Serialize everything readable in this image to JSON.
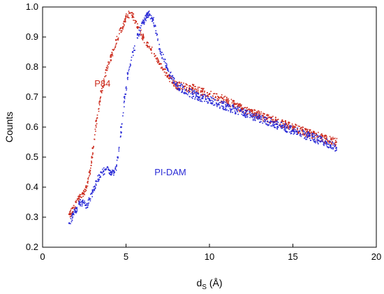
{
  "chart_data": {
    "type": "scatter",
    "xlabel": "d",
    "xlabel_sub": "S",
    "xlabel_unit": " (Å)",
    "ylabel": "Counts",
    "xlim": [
      0,
      20
    ],
    "ylim": [
      0.2,
      1.0
    ],
    "xticks": [
      "0",
      "5",
      "10",
      "15",
      "20"
    ],
    "yticks": [
      "0.2",
      "0.3",
      "0.4",
      "0.5",
      "0.6",
      "0.7",
      "0.8",
      "0.9",
      "1.0"
    ],
    "grid": false,
    "series": [
      {
        "name": "P84",
        "color": "#cc2b1d",
        "points": [
          [
            1.6,
            0.31
          ],
          [
            1.8,
            0.33
          ],
          [
            2.0,
            0.35
          ],
          [
            2.2,
            0.37
          ],
          [
            2.4,
            0.38
          ],
          [
            2.6,
            0.4
          ],
          [
            2.8,
            0.45
          ],
          [
            3.0,
            0.53
          ],
          [
            3.2,
            0.62
          ],
          [
            3.5,
            0.72
          ],
          [
            3.8,
            0.79
          ],
          [
            4.1,
            0.84
          ],
          [
            4.4,
            0.89
          ],
          [
            4.7,
            0.93
          ],
          [
            5.0,
            0.97
          ],
          [
            5.2,
            0.98
          ],
          [
            5.4,
            0.97
          ],
          [
            5.7,
            0.93
          ],
          [
            6.0,
            0.9
          ],
          [
            6.5,
            0.86
          ],
          [
            7.0,
            0.81
          ],
          [
            7.5,
            0.77
          ],
          [
            8.0,
            0.74
          ],
          [
            8.5,
            0.735
          ],
          [
            9.0,
            0.73
          ],
          [
            9.5,
            0.72
          ],
          [
            10.0,
            0.71
          ],
          [
            11.0,
            0.69
          ],
          [
            12.0,
            0.66
          ],
          [
            13.0,
            0.64
          ],
          [
            14.0,
            0.62
          ],
          [
            15.0,
            0.6
          ],
          [
            16.0,
            0.58
          ],
          [
            17.0,
            0.56
          ],
          [
            17.6,
            0.55
          ]
        ]
      },
      {
        "name": "PI-DAM",
        "color": "#2a2bd6",
        "points": [
          [
            1.6,
            0.28
          ],
          [
            1.8,
            0.31
          ],
          [
            2.0,
            0.33
          ],
          [
            2.2,
            0.35
          ],
          [
            2.4,
            0.35
          ],
          [
            2.6,
            0.34
          ],
          [
            2.8,
            0.36
          ],
          [
            3.0,
            0.39
          ],
          [
            3.2,
            0.42
          ],
          [
            3.5,
            0.45
          ],
          [
            3.8,
            0.46
          ],
          [
            4.1,
            0.45
          ],
          [
            4.3,
            0.45
          ],
          [
            4.5,
            0.5
          ],
          [
            4.7,
            0.6
          ],
          [
            4.9,
            0.7
          ],
          [
            5.1,
            0.78
          ],
          [
            5.4,
            0.85
          ],
          [
            5.7,
            0.91
          ],
          [
            6.0,
            0.95
          ],
          [
            6.3,
            0.98
          ],
          [
            6.6,
            0.96
          ],
          [
            7.0,
            0.86
          ],
          [
            7.5,
            0.79
          ],
          [
            8.0,
            0.74
          ],
          [
            9.0,
            0.71
          ],
          [
            10.0,
            0.69
          ],
          [
            11.0,
            0.67
          ],
          [
            12.0,
            0.65
          ],
          [
            13.0,
            0.63
          ],
          [
            14.0,
            0.61
          ],
          [
            15.0,
            0.59
          ],
          [
            16.0,
            0.57
          ],
          [
            17.0,
            0.55
          ],
          [
            17.6,
            0.53
          ]
        ]
      }
    ],
    "annotations": [
      {
        "text": "P84",
        "x": 1.6,
        "y": 0.735,
        "color": "#cc2b1d"
      },
      {
        "text": "PI-DAM",
        "x": 5.2,
        "y": 0.44,
        "color": "#2a2bd6"
      }
    ]
  }
}
